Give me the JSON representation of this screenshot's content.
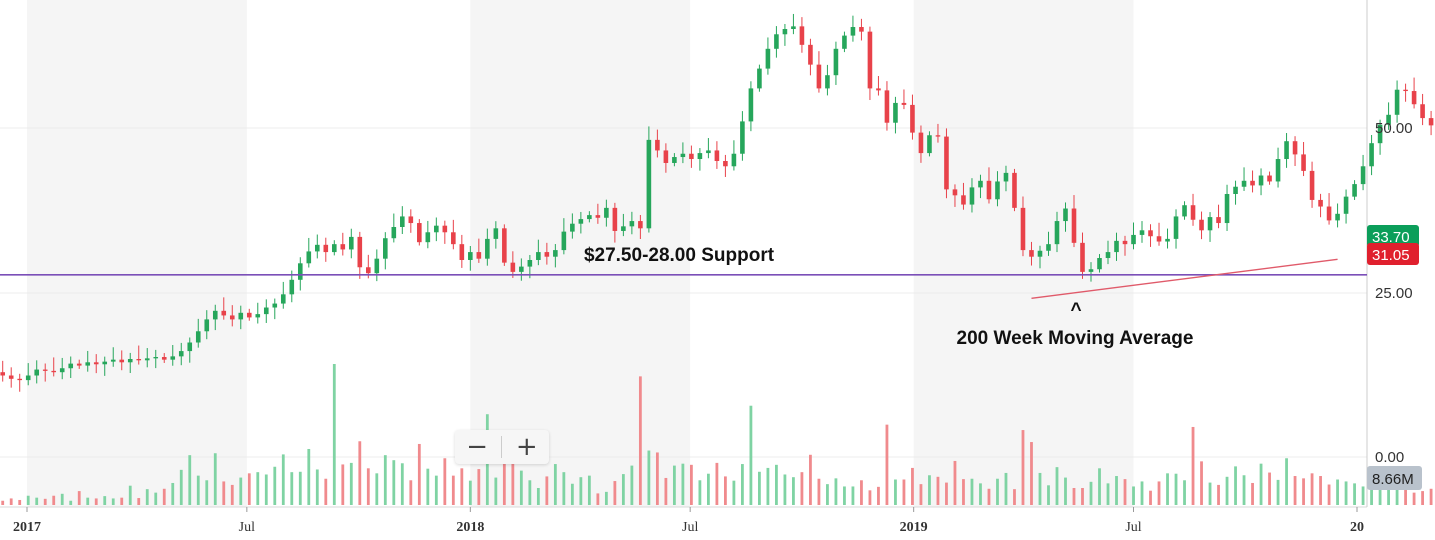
{
  "chart_data": {
    "type": "candlestick",
    "price_axis": {
      "ticks": [
        {
          "value": 50,
          "label": "50.00"
        },
        {
          "value": 25,
          "label": "25.00"
        }
      ],
      "range": [
        12,
        70
      ]
    },
    "volume_axis": {
      "ticks": [
        {
          "value": 0,
          "label": "0.00"
        }
      ],
      "range_millions": [
        0,
        45
      ]
    },
    "time_axis": {
      "range": [
        "2016-12-05",
        "2019-12-30"
      ],
      "ticks": [
        {
          "date": "2017-01-01",
          "label": "2017",
          "bold": true
        },
        {
          "date": "2017-07-01",
          "label": "Jul",
          "bold": false
        },
        {
          "date": "2018-01-01",
          "label": "2018",
          "bold": true
        },
        {
          "date": "2018-07-01",
          "label": "Jul",
          "bold": false
        },
        {
          "date": "2019-01-01",
          "label": "2019",
          "bold": true
        },
        {
          "date": "2019-07-01",
          "label": "Jul",
          "bold": false
        },
        {
          "date": "2020-01-01",
          "label": "20",
          "bold": true
        }
      ],
      "shaded_half_years": [
        [
          "2017-01-01",
          "2017-07-01"
        ],
        [
          "2018-01-01",
          "2018-07-01"
        ],
        [
          "2019-01-01",
          "2019-07-01"
        ]
      ]
    },
    "colors": {
      "up": "#26a65b",
      "down": "#e8424a",
      "up_volume": "#7fd3a3",
      "down_volume": "#f08a8d",
      "support": "#7b4fb8",
      "moving_average": "#e05a6a"
    },
    "closes": [
      13.0,
      12.5,
      12.0,
      11.8,
      12.5,
      13.4,
      13.2,
      13.0,
      13.6,
      14.3,
      14.0,
      14.5,
      14.2,
      14.6,
      14.9,
      14.5,
      15.0,
      14.8,
      15.1,
      15.3,
      14.9,
      15.4,
      16.2,
      17.5,
      19.2,
      21.0,
      22.3,
      21.6,
      21.0,
      22.0,
      21.3,
      21.8,
      22.8,
      23.4,
      24.8,
      27.0,
      29.5,
      31.3,
      32.3,
      31.2,
      32.4,
      31.6,
      33.5,
      28.9,
      28.0,
      30.2,
      33.3,
      35.0,
      36.6,
      35.6,
      32.7,
      34.2,
      35.2,
      34.2,
      32.4,
      30.0,
      31.2,
      30.2,
      33.2,
      34.8,
      29.6,
      28.2,
      29.0,
      30.0,
      31.2,
      30.5,
      31.5,
      34.3,
      35.5,
      36.2,
      36.8,
      36.4,
      37.9,
      34.4,
      35.1,
      35.9,
      34.8,
      48.2,
      46.6,
      44.7,
      45.6,
      46.1,
      45.3,
      46.2,
      46.6,
      45.0,
      44.2,
      46.1,
      51.0,
      56.0,
      59.0,
      62.0,
      64.2,
      65.0,
      65.4,
      62.6,
      59.6,
      56.0,
      58.0,
      62.0,
      64.0,
      65.3,
      64.6,
      56.0,
      55.7,
      50.8,
      53.8,
      53.5,
      49.3,
      46.2,
      48.9,
      48.7,
      40.7,
      39.8,
      38.4,
      41.0,
      42.0,
      39.2,
      41.9,
      43.2,
      37.9,
      31.5,
      30.5,
      31.4,
      32.4,
      35.9,
      37.8,
      32.6,
      28.2,
      28.6,
      30.3,
      31.2,
      32.9,
      32.4,
      33.8,
      34.5,
      33.6,
      32.8,
      33.2,
      36.6,
      38.3,
      36.1,
      34.5,
      36.5,
      35.6,
      40.0,
      41.1,
      42.0,
      41.3,
      42.8,
      41.9,
      45.3,
      48.0,
      46.0,
      43.5,
      39.1,
      38.1,
      36.0,
      37.0,
      39.6,
      41.5,
      44.2,
      47.7,
      50.5,
      52.0,
      55.8,
      55.6,
      53.6,
      51.5,
      50.4,
      46.8,
      43.7,
      42.3,
      40.3,
      43.5,
      47.6,
      50.0,
      48.6,
      47.4,
      47.5,
      45.5,
      42.8,
      43.2,
      44.6,
      41.6,
      44.5,
      43.7,
      42.8,
      43.6,
      44.8,
      44.3,
      42.5,
      36.6,
      34.5,
      35.2,
      33.7,
      33.1,
      32.4
    ],
    "volume_millions": [
      1.9,
      1.1,
      1.7,
      1.3,
      2.4,
      1.9,
      1.6,
      2.4,
      2.9,
      1.1,
      3.6,
      1.9,
      1.7,
      2.3,
      1.7,
      1.9,
      5.0,
      1.8,
      4.1,
      3.2,
      4.2,
      5.7,
      9.1,
      12.9,
      7.6,
      6.4,
      13.4,
      6.1,
      5.2,
      7.1,
      8.2,
      8.5,
      7.9,
      9.9,
      13.1,
      8.5,
      8.6,
      14.5,
      9.2,
      6.8,
      36.5,
      10.5,
      10.9,
      16.5,
      9.5,
      8.2,
      12.9,
      11.6,
      10.8,
      6.4,
      15.8,
      9.4,
      7.6,
      12.1,
      7.6,
      9.5,
      6.3,
      9.3,
      23.5,
      7.1,
      13.9,
      12.6,
      8.9,
      6.4,
      4.4,
      7.4,
      10.6,
      8.5,
      5.5,
      7.2,
      7.6,
      3.0,
      3.4,
      6.2,
      8.0,
      10.2,
      33.3,
      14.1,
      13.6,
      7.0,
      10.2,
      10.7,
      10.4,
      6.4,
      8.1,
      10.9,
      7.4,
      6.3,
      10.6,
      25.7,
      8.6,
      9.6,
      10.4,
      7.9,
      7.2,
      8.5,
      13.0,
      6.8,
      5.4,
      6.9,
      4.8,
      4.8,
      6.4,
      3.8,
      4.7,
      20.8,
      6.6,
      6.6,
      9.6,
      5.4,
      7.7,
      7.3,
      5.8,
      11.4,
      6.7,
      6.8,
      5.6,
      4.2,
      6.8,
      8.3,
      4.1,
      19.4,
      16.3,
      8.3,
      5.1,
      9.8,
      7.1,
      4.4,
      4.4,
      6.0,
      9.5,
      5.6,
      7.5,
      6.7,
      4.8,
      6.1,
      3.7,
      6.1,
      8.2,
      8.1,
      6.4,
      20.2,
      11.3,
      5.8,
      5.2,
      7.3,
      10.0,
      7.7,
      5.7,
      10.7,
      8.4,
      6.5,
      12.1,
      7.5,
      6.9,
      8.2,
      7.5,
      5.3,
      6.6,
      6.1,
      5.6,
      4.8,
      5.2,
      8.0,
      5.2,
      5.5,
      5.4,
      3.2,
      3.6,
      4.2,
      3.9,
      4.0,
      5.5,
      15.6,
      5.1,
      5.1,
      6.6,
      5.5,
      4.4,
      3.1,
      4.2,
      3.1,
      4.4,
      3.9,
      2.6,
      3.6,
      1.4,
      4.0,
      3.1,
      15.0,
      5.8,
      5.1,
      5.5,
      6.1
    ],
    "moving_average": {
      "label": "200 Week Moving Average",
      "start": {
        "date": "2019-04-08",
        "value": 24.2
      },
      "end": {
        "date": "2019-12-16",
        "value": 30.1
      }
    },
    "support": {
      "label": "$27.50-28.00 Support",
      "value": 27.75
    },
    "annotations": [
      {
        "text": "^"
      }
    ],
    "last_price_badges": [
      {
        "label": "33.70",
        "value": 33.7,
        "color": "#0b9e5a"
      },
      {
        "label": "31.05",
        "value": 31.05,
        "color": "#e0202e"
      }
    ],
    "volume_badge": {
      "label": "8.66M",
      "value_millions": 8.66,
      "color": "#b9c2cc"
    }
  }
}
